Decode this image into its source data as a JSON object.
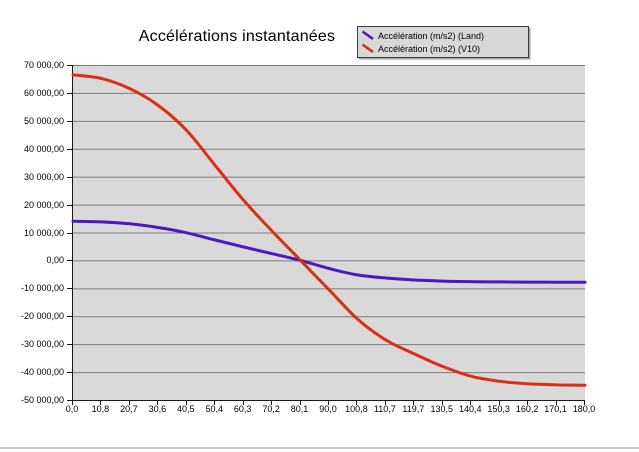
{
  "page": {
    "background": "#ffffff",
    "bottom_rule_color": "#c9c9c9"
  },
  "chart_data": {
    "type": "line",
    "title": "Accélérations instantanées",
    "xlabel": "",
    "ylabel": "",
    "grid": true,
    "legend_position": "top-right",
    "plot_background": "#d9d9d9",
    "gridline_color": "#7b7b7b",
    "ylim": [
      -50000,
      70000
    ],
    "y_tick_labels": [
      "70 000,00",
      "60 000,00",
      "50 000,00",
      "40 000,00",
      "30 000,00",
      "20 000,00",
      "10 000,00",
      "0,00",
      "-10 000,00",
      "-20 000,00",
      "-30 000,00",
      "-40 000,00",
      "-50 000,00"
    ],
    "y_tick_values": [
      70000,
      60000,
      50000,
      40000,
      30000,
      20000,
      10000,
      0,
      -10000,
      -20000,
      -30000,
      -40000,
      -50000
    ],
    "categories": [
      "0,0",
      "10,8",
      "20,7",
      "30,6",
      "40,5",
      "50,4",
      "60,3",
      "70,2",
      "80,1",
      "90,0",
      "100,8",
      "110,7",
      "119,7",
      "130,5",
      "140,4",
      "150,3",
      "160,2",
      "170,1",
      "180,0"
    ],
    "series": [
      {
        "name": "Accélération (m/s2) (Land)",
        "color": "#4d17c4",
        "values": [
          14000,
          13800,
          13100,
          11800,
          9900,
          7300,
          4800,
          2400,
          0,
          -2900,
          -5200,
          -6300,
          -7000,
          -7400,
          -7600,
          -7700,
          -7750,
          -7800,
          -7800
        ]
      },
      {
        "name": "Accélération (m/s2) (V10)",
        "color": "#dd2d16",
        "values": [
          66500,
          65200,
          61500,
          55500,
          46500,
          34000,
          21500,
          10500,
          0,
          -10500,
          -21000,
          -28500,
          -33500,
          -38000,
          -41500,
          -43300,
          -44200,
          -44600,
          -44700
        ]
      }
    ]
  }
}
